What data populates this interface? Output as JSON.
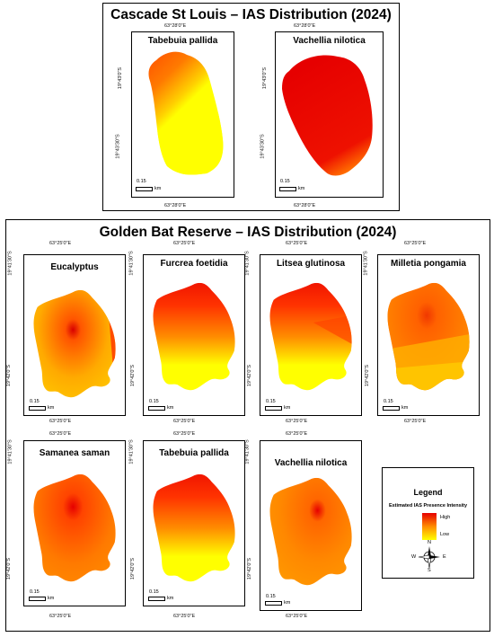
{
  "sections": [
    {
      "title": "Cascade St Louis – IAS Distribution (2024)",
      "maps": [
        {
          "species": "Tabebuia pallida",
          "top_coord": "63°28'0\"E",
          "bottom_coord": "63°28'0\"E",
          "left_coords": [
            "19°43'0\"S",
            "19°43'30\"S"
          ],
          "scale_value": "0.15",
          "scale_unit": "km"
        },
        {
          "species": "Vachellia nilotica",
          "top_coord": "63°28'0\"E",
          "bottom_coord": "63°28'0\"E",
          "left_coords": [
            "19°43'0\"S",
            "19°43'30\"S"
          ],
          "scale_value": "0.15",
          "scale_unit": "km"
        }
      ]
    },
    {
      "title": "Golden Bat Reserve – IAS Distribution (2024)",
      "maps": [
        {
          "species": "Eucalyptus",
          "top_coord": "63°25'0\"E",
          "bottom_coord": "63°25'0\"E",
          "left_coords": [
            "19°41'30\"S",
            "19°42'0\"S"
          ],
          "scale_value": "0.15",
          "scale_unit": "km"
        },
        {
          "species": "Furcrea foetidia",
          "top_coord": "63°25'0\"E",
          "bottom_coord": "63°25'0\"E",
          "left_coords": [
            "19°41'30\"S",
            "19°42'0\"S"
          ],
          "scale_value": "0.15",
          "scale_unit": "km"
        },
        {
          "species": "Litsea glutinosa",
          "top_coord": "63°25'0\"E",
          "bottom_coord": "63°25'0\"E",
          "left_coords": [
            "19°41'30\"S",
            "19°42'0\"S"
          ],
          "scale_value": "0.15",
          "scale_unit": "km"
        },
        {
          "species": "Milletia pongamia",
          "top_coord": "63°25'0\"E",
          "bottom_coord": "63°25'0\"E",
          "left_coords": [
            "19°41'30\"S",
            "19°42'0\"S"
          ],
          "scale_value": "0.15",
          "scale_unit": "km"
        },
        {
          "species": "Samanea saman",
          "top_coord": "63°25'0\"E",
          "bottom_coord": "63°25'0\"E",
          "left_coords": [
            "19°41'30\"S",
            "19°42'0\"S"
          ],
          "scale_value": "0.15",
          "scale_unit": "km"
        },
        {
          "species": "Tabebuia pallida",
          "top_coord": "63°25'0\"E",
          "bottom_coord": "63°25'0\"E",
          "left_coords": [
            "19°41'30\"S",
            "19°42'0\"S"
          ],
          "scale_value": "0.15",
          "scale_unit": "km"
        },
        {
          "species": "Vachellia nilotica",
          "top_coord": "63°25'0\"E",
          "bottom_coord": "63°25'0\"E",
          "left_coords": [
            "19°41'30\"S",
            "19°42'0\"S"
          ],
          "scale_value": "0.15",
          "scale_unit": "km"
        }
      ]
    }
  ],
  "legend": {
    "title": "Legend",
    "subtitle": "Estimated IAS Presence Intensity",
    "high_label": "High",
    "low_label": "Low",
    "colors": {
      "high": "#e60000",
      "mid": "#ff8c00",
      "low": "#ffff00"
    },
    "north_arrow": {
      "n": "N",
      "s": "S",
      "e": "E",
      "w": "W"
    }
  }
}
